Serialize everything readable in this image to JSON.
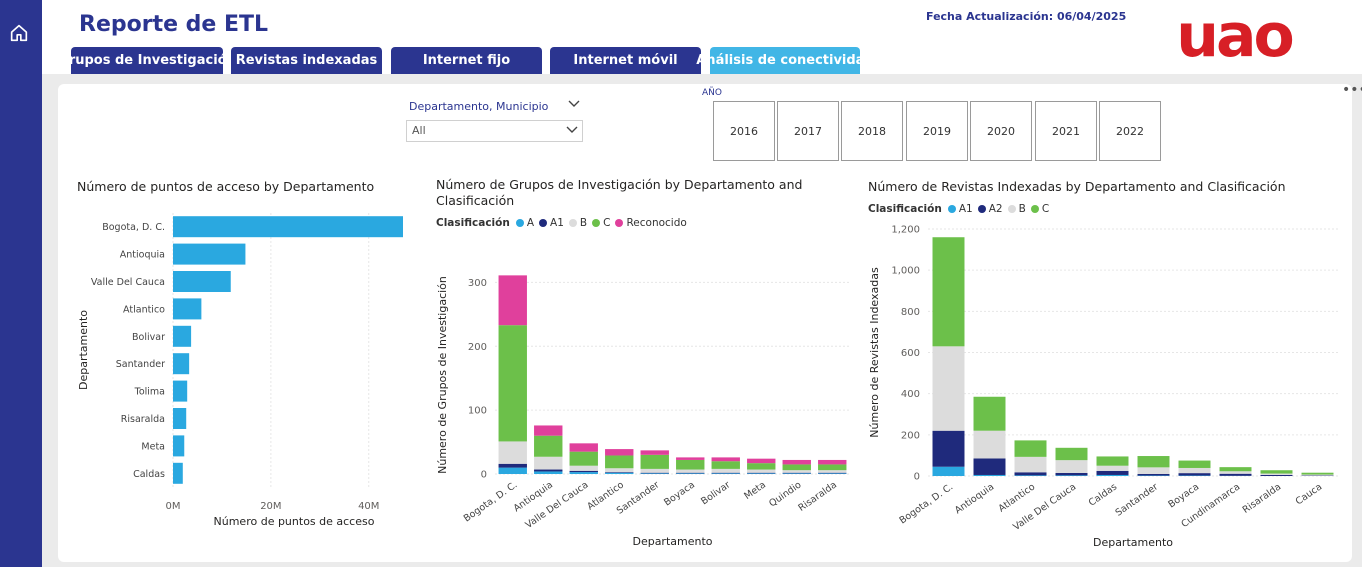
{
  "header": {
    "title": "Reporte de ETL",
    "update_label": "Fecha Actualización: 06/04/2025",
    "logo_text": "uao",
    "logo_color": "#d71f26",
    "brand_color": "#2b3590",
    "active_tab_color": "#41b6e6"
  },
  "tabs": [
    {
      "label": "Grupos de Investigación"
    },
    {
      "label": "Revistas indexadas"
    },
    {
      "label": "Internet fijo"
    },
    {
      "label": "Internet móvil"
    },
    {
      "label": "Análisis de conectividad",
      "active": true
    }
  ],
  "slicer": {
    "label": "Departamento, Municipio",
    "value": "All"
  },
  "year_filter": {
    "label": "AÑO",
    "years": [
      "2016",
      "2017",
      "2018",
      "2019",
      "2020",
      "2021",
      "2022"
    ]
  },
  "charts": {
    "access": {
      "title": "Número de puntos de acceso by Departamento",
      "xlabel": "Número de puntos de acceso",
      "ylabel": "Departamento"
    },
    "groups": {
      "title_line1": "Número de Grupos de Investigación by Departamento and",
      "title_line2": "Clasificación",
      "legend_title": "Clasificación",
      "xlabel": "Departamento",
      "ylabel": "Número de Grupos de Investigación"
    },
    "journals": {
      "title": "Número de Revistas Indexadas by Departamento and Clasificación",
      "legend_title": "Clasificación",
      "xlabel": "Departamento",
      "ylabel": "Número de Revistas Indexadas"
    }
  },
  "chart_data": [
    {
      "type": "bar",
      "orientation": "horizontal",
      "title": "Número de puntos de acceso by Departamento",
      "categories": [
        "Bogota, D. C.",
        "Antioquia",
        "Valle Del Cauca",
        "Atlantico",
        "Bolivar",
        "Santander",
        "Tolima",
        "Risaralda",
        "Meta",
        "Caldas"
      ],
      "values": [
        47000000,
        14800000,
        11800000,
        5800000,
        3700000,
        3300000,
        2900000,
        2700000,
        2300000,
        2000000
      ],
      "xlim": [
        0,
        47000000
      ],
      "ticks": [
        0,
        20000000,
        40000000
      ],
      "tick_labels": [
        "0M",
        "20M",
        "40M"
      ],
      "color": "#2aa8e0",
      "xlabel": "Número de puntos de acceso",
      "ylabel": "Departamento"
    },
    {
      "type": "bar",
      "stacked": true,
      "title": "Número de Grupos de Investigación by Departamento and Clasificación",
      "categories": [
        "Bogota, D. C.",
        "Antioquia",
        "Valle Del Cauca",
        "Atlantico",
        "Santander",
        "Boyaca",
        "Bolivar",
        "Meta",
        "Quindio",
        "Risaralda"
      ],
      "series": [
        {
          "name": "A",
          "color": "#2aa8e0",
          "values": [
            10,
            4,
            3,
            2,
            1,
            1,
            1,
            1,
            1,
            1
          ]
        },
        {
          "name": "A1",
          "color": "#1f2a7c",
          "values": [
            6,
            3,
            2,
            1,
            1,
            1,
            1,
            1,
            1,
            1
          ]
        },
        {
          "name": "B",
          "color": "#dcdcdc",
          "values": [
            35,
            20,
            8,
            6,
            6,
            5,
            6,
            5,
            4,
            4
          ]
        },
        {
          "name": "C",
          "color": "#6cc04a",
          "values": [
            182,
            33,
            22,
            20,
            22,
            15,
            12,
            10,
            9,
            9
          ]
        },
        {
          "name": "Reconocido",
          "color": "#e0409c",
          "values": [
            78,
            16,
            13,
            10,
            7,
            4,
            6,
            7,
            7,
            7
          ]
        }
      ],
      "ylim": [
        0,
        310
      ],
      "ticks": [
        0,
        100,
        200,
        300
      ],
      "xlabel": "Departamento",
      "ylabel": "Número de Grupos de Investigación"
    },
    {
      "type": "bar",
      "stacked": true,
      "title": "Número de Revistas Indexadas by Departamento and Clasificación",
      "categories": [
        "Bogota, D. C.",
        "Antioquia",
        "Atlantico",
        "Valle Del Cauca",
        "Caldas",
        "Santander",
        "Boyaca",
        "Cundinamarca",
        "Risaralda",
        "Cauca"
      ],
      "series": [
        {
          "name": "A1",
          "color": "#2aa8e0",
          "values": [
            45,
            5,
            3,
            3,
            5,
            2,
            2,
            1,
            0,
            0
          ]
        },
        {
          "name": "A2",
          "color": "#1f2a7c",
          "values": [
            175,
            80,
            15,
            12,
            20,
            8,
            12,
            10,
            5,
            2
          ]
        },
        {
          "name": "B",
          "color": "#dcdcdc",
          "values": [
            410,
            135,
            75,
            62,
            25,
            32,
            25,
            12,
            7,
            5
          ]
        },
        {
          "name": "C",
          "color": "#6cc04a",
          "values": [
            530,
            165,
            80,
            60,
            45,
            55,
            36,
            20,
            16,
            9
          ]
        }
      ],
      "ylim": [
        0,
        1200
      ],
      "ticks": [
        0,
        200,
        400,
        600,
        800,
        1000,
        1200
      ],
      "tick_labels": [
        "0",
        "200",
        "400",
        "600",
        "800",
        "1,000",
        "1,200"
      ],
      "xlabel": "Departamento",
      "ylabel": "Número de Revistas Indexadas"
    }
  ]
}
